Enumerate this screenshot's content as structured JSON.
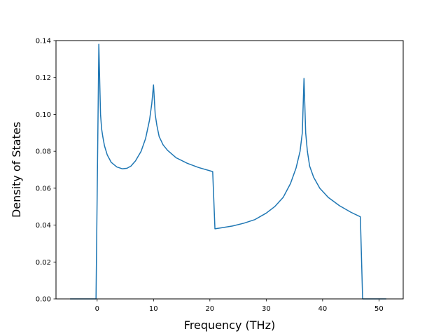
{
  "chart_data": {
    "type": "line",
    "title": "",
    "xlabel": "Frequency (THz)",
    "ylabel": "Density of States",
    "xlim": [
      -7.3,
      54.3
    ],
    "ylim": [
      0.0,
      0.14
    ],
    "xticks": [
      0,
      10,
      20,
      30,
      40,
      50
    ],
    "yticks": [
      0.0,
      0.02,
      0.04,
      0.06,
      0.08,
      0.1,
      0.12,
      0.14
    ],
    "ytick_labels": [
      "0.00",
      "0.02",
      "0.04",
      "0.06",
      "0.08",
      "0.10",
      "0.12",
      "0.14"
    ],
    "grid": false,
    "legend": "none",
    "series": [
      {
        "color": "#1f77b4",
        "x": [
          -4.8,
          -0.2,
          0.3,
          0.6,
          0.8,
          1.0,
          1.3,
          1.8,
          2.5,
          3.5,
          4.5,
          5.3,
          6.0,
          6.8,
          7.8,
          8.6,
          9.3,
          9.7,
          10.0,
          10.3,
          10.6,
          11.0,
          11.7,
          12.5,
          14.0,
          16.0,
          18.0,
          20.5,
          20.9,
          22.0,
          24.0,
          26.0,
          28.0,
          30.0,
          31.5,
          33.0,
          34.3,
          35.3,
          36.0,
          36.4,
          36.7,
          37.0,
          37.3,
          37.7,
          38.4,
          39.5,
          41.0,
          43.0,
          45.0,
          46.7,
          47.1,
          51.3
        ],
        "y": [
          0.0,
          0.0,
          0.138,
          0.1,
          0.092,
          0.088,
          0.083,
          0.078,
          0.074,
          0.0715,
          0.0705,
          0.0708,
          0.072,
          0.0748,
          0.08,
          0.087,
          0.097,
          0.106,
          0.116,
          0.1,
          0.094,
          0.088,
          0.0835,
          0.0805,
          0.0765,
          0.0735,
          0.0712,
          0.069,
          0.038,
          0.0385,
          0.0395,
          0.041,
          0.043,
          0.0465,
          0.05,
          0.055,
          0.0625,
          0.071,
          0.08,
          0.09,
          0.1195,
          0.09,
          0.08,
          0.072,
          0.066,
          0.06,
          0.055,
          0.0505,
          0.047,
          0.0445,
          0.0,
          0.0
        ]
      }
    ]
  }
}
